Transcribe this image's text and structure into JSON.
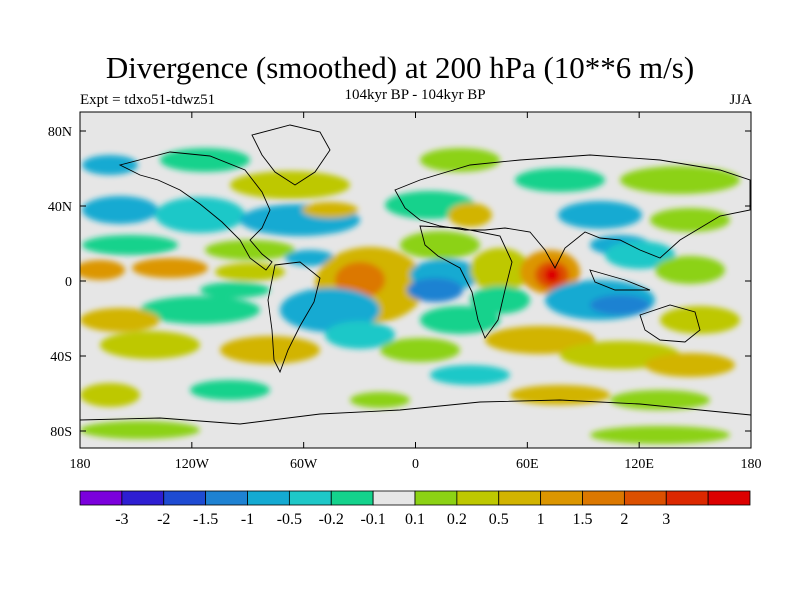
{
  "title": "Divergence (smoothed) at 200 hPa (10**6 m/s)",
  "left_label": "Expt = tdxo51-tdwz51",
  "center_label": "104kyr BP - 104kyr BP",
  "right_label": "JJA",
  "map": {
    "x_ticks": [
      "180",
      "120W",
      "60W",
      "0",
      "60E",
      "120E",
      "180"
    ],
    "y_ticks": [
      "80N",
      "40N",
      "0",
      "40S",
      "80S"
    ]
  },
  "colorbar": {
    "colors": [
      "#7B00DC",
      "#2E1ED2",
      "#1E4BD2",
      "#1E82D2",
      "#14AAD2",
      "#1EC8C8",
      "#14D28C",
      "#E6E6E6",
      "#8CD214",
      "#BEC800",
      "#D2B400",
      "#DC9600",
      "#DC7800",
      "#DC5000",
      "#DC2800",
      "#DC0000"
    ],
    "labels": [
      "-3",
      "-2",
      "-1.5",
      "-1",
      "-0.5",
      "-0.2",
      "-0.1",
      "0.1",
      "0.2",
      "0.5",
      "1",
      "1.5",
      "2",
      "3"
    ]
  }
}
